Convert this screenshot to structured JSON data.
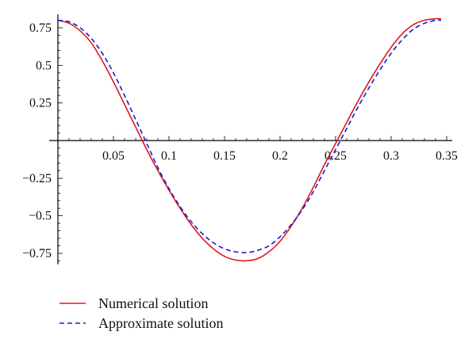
{
  "chart_data": {
    "type": "line",
    "title": "",
    "xlabel": "",
    "ylabel": "",
    "xlim": [
      0,
      0.35
    ],
    "ylim": [
      -0.85,
      0.85
    ],
    "grid": false,
    "legend_position": "bottom-left",
    "x_ticks": [
      {
        "value": 0.05,
        "label": "0.05"
      },
      {
        "value": 0.1,
        "label": "0.1"
      },
      {
        "value": 0.15,
        "label": "0.15"
      },
      {
        "value": 0.2,
        "label": "0.2"
      },
      {
        "value": 0.25,
        "label": "0.25"
      },
      {
        "value": 0.3,
        "label": "0.3"
      },
      {
        "value": 0.35,
        "label": "0.35"
      }
    ],
    "y_ticks": [
      {
        "value": 0.75,
        "label": "0.75"
      },
      {
        "value": 0.5,
        "label": "0.5"
      },
      {
        "value": 0.25,
        "label": "0.25"
      },
      {
        "value": -0.25,
        "label": "−0.25"
      },
      {
        "value": -0.5,
        "label": "−0.5"
      },
      {
        "value": -0.75,
        "label": "−0.75"
      }
    ],
    "series": [
      {
        "name": "Numerical solution",
        "color": "#e0181b",
        "style": "solid",
        "x": [
          0,
          0.01,
          0.02,
          0.03,
          0.04,
          0.05,
          0.06,
          0.07,
          0.08,
          0.09,
          0.1,
          0.11,
          0.12,
          0.13,
          0.14,
          0.15,
          0.16,
          0.17,
          0.18,
          0.19,
          0.2,
          0.21,
          0.22,
          0.23,
          0.24,
          0.25,
          0.26,
          0.27,
          0.28,
          0.29,
          0.3,
          0.31,
          0.32,
          0.33,
          0.34,
          0.345
        ],
        "y": [
          0.8,
          0.78,
          0.73,
          0.65,
          0.53,
          0.39,
          0.24,
          0.09,
          -0.06,
          -0.2,
          -0.33,
          -0.45,
          -0.56,
          -0.65,
          -0.72,
          -0.77,
          -0.795,
          -0.8,
          -0.785,
          -0.74,
          -0.67,
          -0.57,
          -0.45,
          -0.31,
          -0.16,
          -0.02,
          0.12,
          0.26,
          0.39,
          0.51,
          0.62,
          0.71,
          0.77,
          0.8,
          0.81,
          0.81
        ]
      },
      {
        "name": "Approximate solution",
        "color": "#1a1acc",
        "style": "dashed",
        "x": [
          0,
          0.01,
          0.02,
          0.03,
          0.04,
          0.05,
          0.06,
          0.07,
          0.08,
          0.09,
          0.1,
          0.11,
          0.12,
          0.13,
          0.14,
          0.15,
          0.16,
          0.17,
          0.18,
          0.19,
          0.2,
          0.21,
          0.22,
          0.23,
          0.24,
          0.25,
          0.26,
          0.27,
          0.28,
          0.29,
          0.3,
          0.31,
          0.32,
          0.33,
          0.34,
          0.345
        ],
        "y": [
          0.8,
          0.79,
          0.75,
          0.68,
          0.58,
          0.45,
          0.3,
          0.14,
          -0.02,
          -0.18,
          -0.32,
          -0.44,
          -0.54,
          -0.62,
          -0.68,
          -0.72,
          -0.74,
          -0.745,
          -0.73,
          -0.7,
          -0.64,
          -0.56,
          -0.46,
          -0.34,
          -0.2,
          -0.06,
          0.08,
          0.22,
          0.35,
          0.47,
          0.58,
          0.67,
          0.74,
          0.78,
          0.8,
          0.8
        ]
      }
    ]
  }
}
